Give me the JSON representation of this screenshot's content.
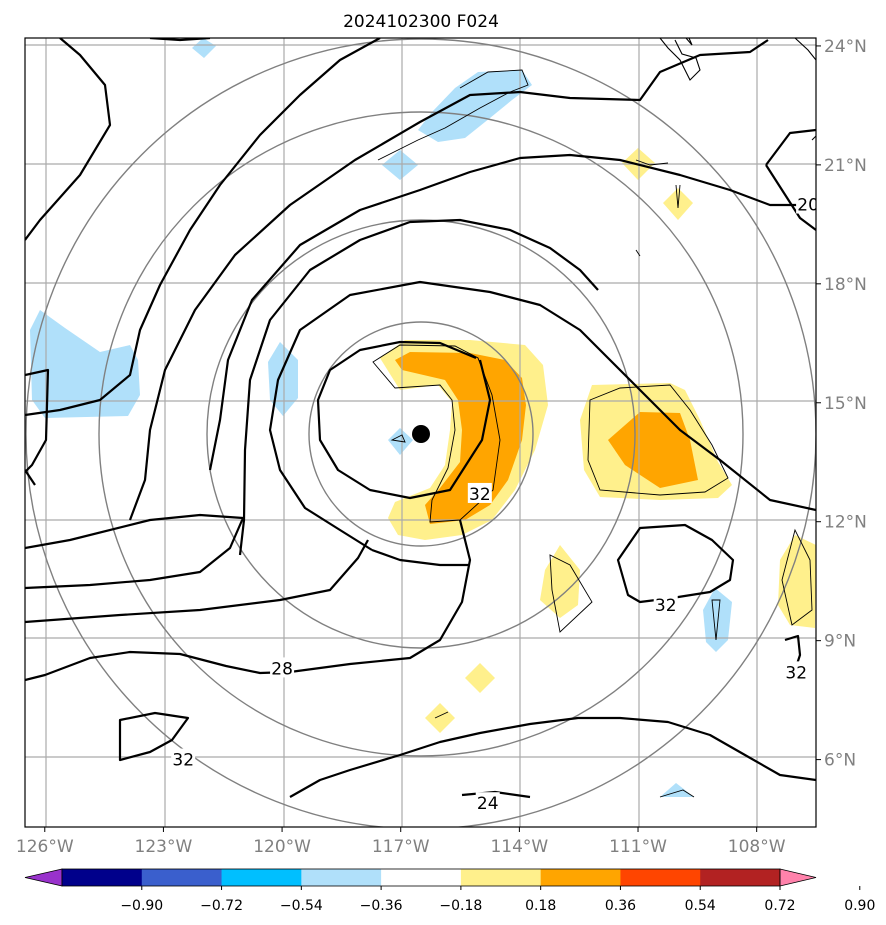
{
  "figure": {
    "title": "2024102300 F024"
  },
  "map": {
    "extent": {
      "lon_min": -126.5,
      "lon_max": -106.5,
      "lat_min": 4.3,
      "lat_max": 24.2
    },
    "lon_ticks": [
      {
        "lon": -126,
        "label": "126°W"
      },
      {
        "lon": -123,
        "label": "123°W"
      },
      {
        "lon": -120,
        "label": "120°W"
      },
      {
        "lon": -117,
        "label": "117°W"
      },
      {
        "lon": -114,
        "label": "114°W"
      },
      {
        "lon": -111,
        "label": "111°W"
      },
      {
        "lon": -108,
        "label": "108°W"
      }
    ],
    "lat_ticks": [
      {
        "lat": 24,
        "label": "24°N"
      },
      {
        "lat": 21,
        "label": "21°N"
      },
      {
        "lat": 18,
        "label": "18°N"
      },
      {
        "lat": 15,
        "label": "15°N"
      },
      {
        "lat": 12,
        "label": "12°N"
      },
      {
        "lat": 9,
        "label": "9°N"
      },
      {
        "lat": 6,
        "label": "6°N"
      }
    ],
    "storm_center": {
      "lon": -116.5,
      "lat": 14.2
    },
    "contour_labels": [
      {
        "text": "32",
        "lon": -115.0,
        "lat": 12.7
      },
      {
        "text": "32",
        "lon": -110.3,
        "lat": 9.9
      },
      {
        "text": "32",
        "lon": -107.0,
        "lat": 8.2
      },
      {
        "text": "32",
        "lon": -122.5,
        "lat": 6.0
      },
      {
        "text": "28",
        "lon": -120.0,
        "lat": 8.3
      },
      {
        "text": "24",
        "lon": -114.8,
        "lat": 4.9
      },
      {
        "text": "20",
        "lon": -106.7,
        "lat": 20.0
      }
    ],
    "grid": true
  },
  "colorbar": {
    "ticks": [
      "−0.90",
      "−0.72",
      "−0.54",
      "−0.36",
      "−0.18",
      "0.18",
      "0.36",
      "0.54",
      "0.72",
      "0.90"
    ],
    "colors": [
      "#9932cc",
      "#00008b",
      "#3a5fcd",
      "#00bfff",
      "#b0e0fa",
      "#ffffff",
      "#fff08c",
      "#ffa500",
      "#ff4500",
      "#b22222",
      "#ff82ab"
    ],
    "extend": "both"
  },
  "colors": {
    "light_blue": "#b0e0fa",
    "light_yellow": "#fff08c",
    "orange": "#ffa500"
  }
}
